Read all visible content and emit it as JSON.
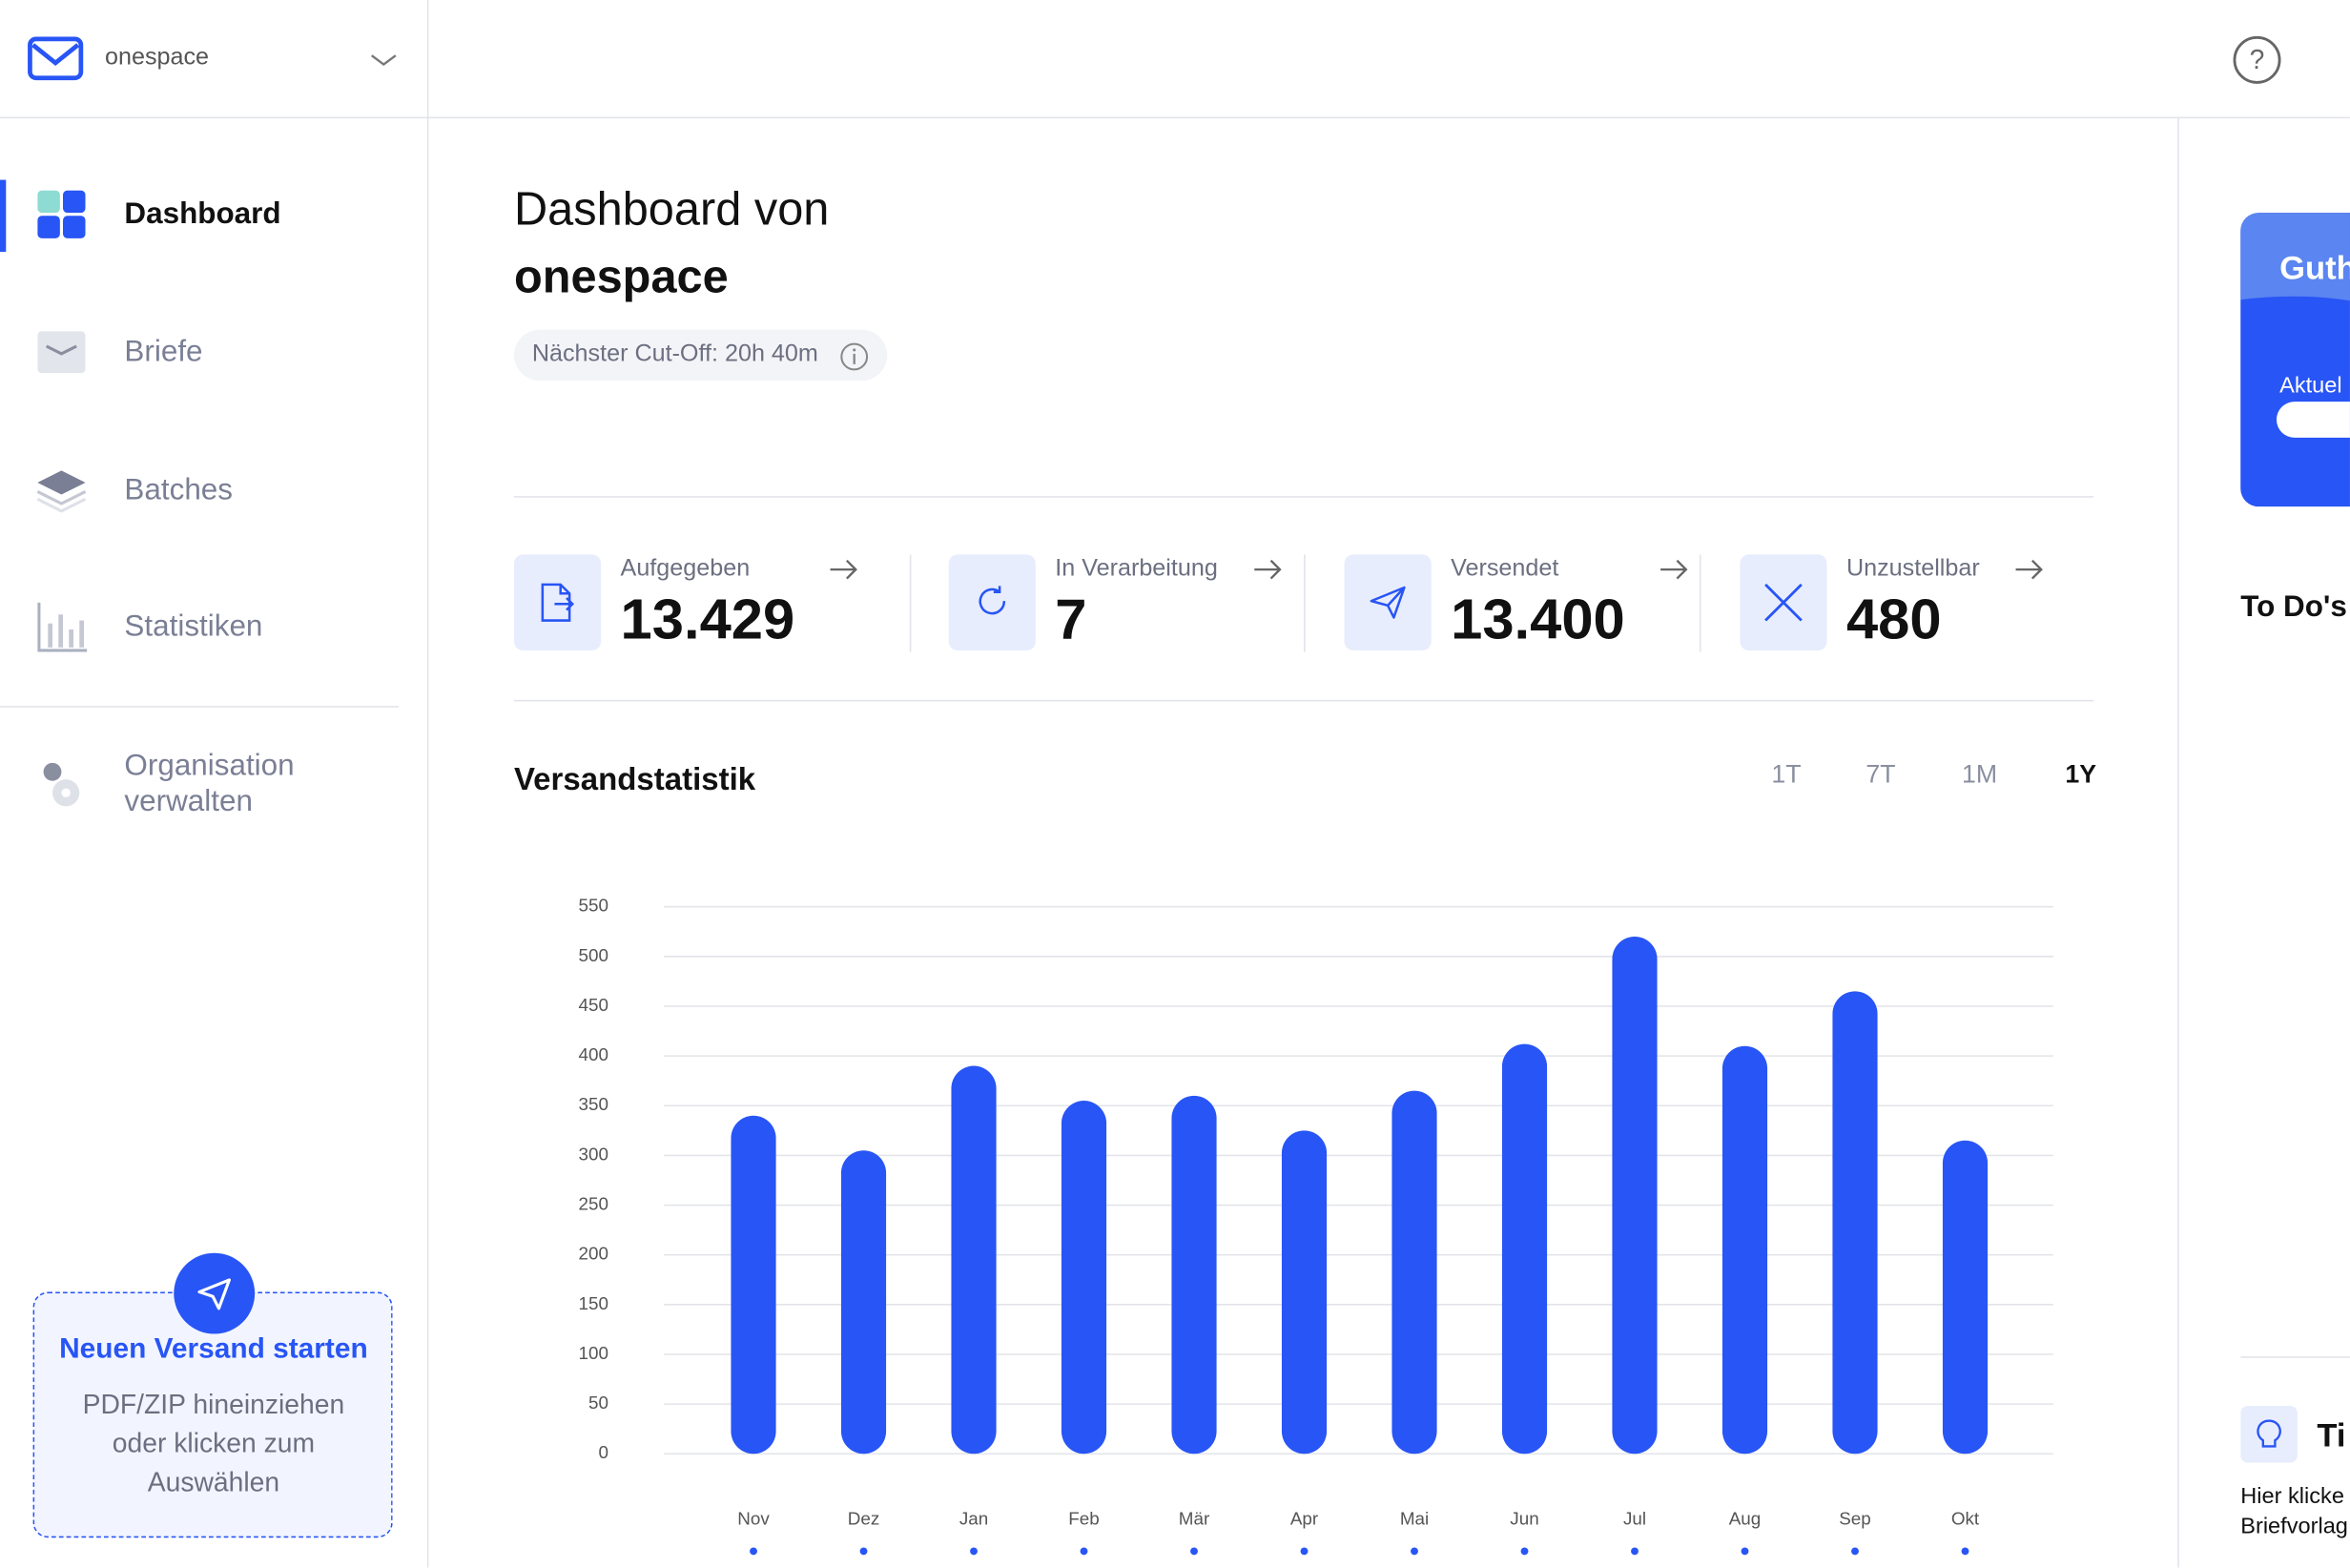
{
  "sidebar": {
    "org": "onespace",
    "nav": [
      "Dashboard",
      "Briefe",
      "Batches",
      "Statistiken"
    ],
    "settings": "Organisation verwalten",
    "upload": {
      "title": "Neuen Versand starten",
      "text": "PDF/ZIP hineinziehen oder klicken zum Auswählen"
    }
  },
  "header": {
    "title": "Dashboard von",
    "org": "onespace",
    "cutoff": "Nächster Cut-Off: 20h 40m"
  },
  "stats": [
    {
      "label": "Aufgegeben",
      "value": "13.429"
    },
    {
      "label": "In Verarbeitung",
      "value": "7"
    },
    {
      "label": "Versendet",
      "value": "13.400"
    },
    {
      "label": "Unzustellbar",
      "value": "480"
    }
  ],
  "chart": {
    "type": "bar",
    "title": "Versandstatistik",
    "ranges": [
      "1T",
      "7T",
      "1M",
      "1Y"
    ],
    "categories": [
      "Nov",
      "Dez",
      "Jan",
      "Feb",
      "Mär",
      "Apr",
      "Mai",
      "Jun",
      "Jul",
      "Aug",
      "Sep",
      "Okt"
    ],
    "values": [
      340,
      305,
      390,
      355,
      360,
      325,
      365,
      412,
      520,
      410,
      465,
      315
    ],
    "color": "#2855f5",
    "ylim": [
      0,
      550
    ],
    "yticks": [
      0,
      50,
      100,
      150,
      200,
      250,
      300,
      350,
      400,
      450,
      500,
      550
    ],
    "grid": true
  },
  "right": {
    "credit_title": "Guth",
    "credit_sub": "Aktuel",
    "todos": "To Do's",
    "tip_title": "Ti",
    "tip_text": [
      "Hier klicke",
      "Briefvorlag"
    ]
  }
}
